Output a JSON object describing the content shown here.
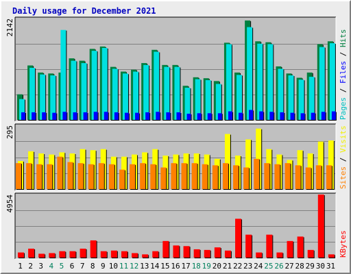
{
  "chart_data": {
    "type": "bar",
    "title": "Daily usage for December 2021",
    "categories": [
      "1",
      "2",
      "3",
      "4",
      "5",
      "6",
      "7",
      "8",
      "9",
      "10",
      "11",
      "12",
      "13",
      "14",
      "15",
      "16",
      "17",
      "18",
      "19",
      "20",
      "21",
      "22",
      "23",
      "24",
      "25",
      "26",
      "27",
      "28",
      "29",
      "30",
      "31"
    ],
    "weekend_days": [
      "4",
      "5",
      "11",
      "12",
      "18",
      "19",
      "25",
      "26"
    ],
    "panels": [
      {
        "id": "hits-files-pages",
        "ymax_label": "2142",
        "ylim": [
          0,
          2142
        ],
        "legend": [
          {
            "label": "Pages",
            "color": "#00C0C0"
          },
          {
            "label": "Files",
            "color": "#0000FF"
          },
          {
            "label": "Hits",
            "color": "#008040"
          }
        ],
        "series": [
          {
            "name": "Hits",
            "color": "#008040",
            "values": [
              540,
              1150,
              1000,
              980,
              1000,
              1300,
              1250,
              1500,
              1550,
              1120,
              1020,
              1060,
              1200,
              1480,
              1160,
              1160,
              720,
              900,
              880,
              820,
              1630,
              1000,
              2100,
              1660,
              1640,
              1130,
              980,
              890,
              1000,
              1600,
              1660
            ]
          },
          {
            "name": "Files",
            "color": "#00E0E0",
            "values": [
              440,
              1100,
              960,
              940,
              1900,
              1250,
              1200,
              1460,
              1520,
              1080,
              980,
              1020,
              1160,
              1440,
              1120,
              1120,
              680,
              860,
              840,
              760,
              1600,
              950,
              1960,
              1610,
              1600,
              1080,
              940,
              850,
              910,
              1540,
              1620
            ]
          },
          {
            "name": "Pages",
            "color": "#0000FF",
            "values": [
              160,
              160,
              160,
              150,
              170,
              160,
              160,
              170,
              170,
              160,
              150,
              150,
              160,
              170,
              160,
              160,
              130,
              140,
              140,
              140,
              180,
              150,
              210,
              180,
              170,
              160,
              150,
              140,
              150,
              170,
              180
            ]
          }
        ]
      },
      {
        "id": "visits-sites",
        "ymax_label": "295",
        "ylim": [
          0,
          295
        ],
        "legend": [
          {
            "label": "Sites",
            "color": "#FF8000"
          },
          {
            "label": "Visits",
            "color": "#F0F000"
          }
        ],
        "series": [
          {
            "name": "Visits",
            "color": "#FFFF00",
            "values": [
              130,
              175,
              165,
              160,
              170,
              165,
              185,
              180,
              185,
              150,
              150,
              160,
              170,
              185,
              155,
              160,
              165,
              165,
              160,
              140,
              255,
              155,
              230,
              280,
              185,
              160,
              135,
              180,
              165,
              220,
              225
            ]
          },
          {
            "name": "Sites",
            "color": "#FF8000",
            "values": [
              120,
              120,
              115,
              115,
              150,
              125,
              120,
              115,
              120,
              115,
              90,
              115,
              120,
              115,
              100,
              120,
              120,
              120,
              115,
              110,
              120,
              110,
              100,
              140,
              120,
              115,
              120,
              110,
              100,
              110,
              110
            ]
          }
        ]
      },
      {
        "id": "kbytes",
        "ymax_label": "4954",
        "ylim": [
          0,
          4954
        ],
        "legend": [
          {
            "label": "KBytes",
            "color": "#FF0000"
          }
        ],
        "series": [
          {
            "name": "KBytes",
            "color": "#FF0000",
            "values": [
              400,
              700,
              300,
              350,
              500,
              500,
              700,
              1350,
              500,
              550,
              500,
              350,
              250,
              500,
              1300,
              950,
              900,
              650,
              600,
              800,
              550,
              3050,
              1800,
              400,
              1800,
              400,
              1300,
              1650,
              600,
              4954,
              250
            ]
          }
        ]
      }
    ]
  }
}
